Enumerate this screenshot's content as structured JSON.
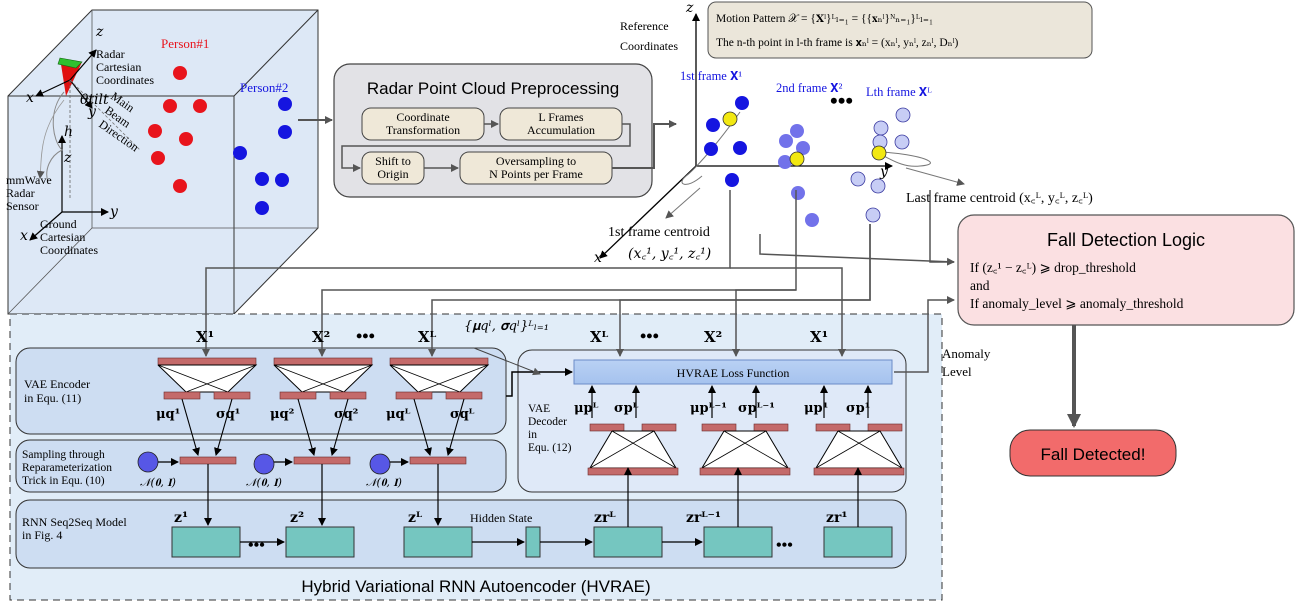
{
  "radar_scene": {
    "person1": "Person#1",
    "person2": "Person#2",
    "radar_coords": [
      "Radar",
      "Cartesian",
      "Coordinates"
    ],
    "main_beam": [
      "Main",
      "Beam",
      "Direction"
    ],
    "theta": "θtilt",
    "h": "h",
    "sensor": [
      "mmWave",
      "Radar",
      "Sensor"
    ],
    "ground_coords": [
      "Ground",
      "Cartesian",
      "Coordinates"
    ],
    "axes": {
      "x": "x",
      "y": "y",
      "z": "z"
    }
  },
  "preprocessing": {
    "title": "Radar Point Cloud Preprocessing",
    "steps": [
      [
        "Coordinate",
        "Transformation"
      ],
      [
        "L Frames",
        "Accumulation"
      ],
      [
        "Shift to",
        "Origin"
      ],
      [
        "Oversampling to",
        "N Points per Frame"
      ]
    ]
  },
  "reference": {
    "label": [
      "Reference",
      "Coordinates"
    ],
    "motion_pattern": "Motion Pattern 𝒳 = {𝐗ˡ}ᴸₗ₌₁ = {{𝐱ₙˡ}ᴺₙ₌₁}ᴸₗ₌₁",
    "nth_point": "The n-th point in l-th frame is 𝐱ₙˡ = (xₙˡ, yₙˡ, zₙˡ, Dₙˡ)",
    "frame1": "1st frame 𝐗¹",
    "frame2": "2nd frame 𝐗²",
    "frameL": "Lth frame 𝐗ᴸ",
    "first_centroid_label": "1st frame centroid",
    "first_centroid_math": "(x꜀¹, y꜀¹, z꜀¹)",
    "last_centroid": "Last frame centroid (x꜀ᴸ, y꜀ᴸ, z꜀ᴸ)"
  },
  "fall_logic": {
    "title": "Fall Detection Logic",
    "line1": "If (z꜀¹ − z꜀ᴸ) ⩾ drop_threshold",
    "line2": "and",
    "line3": "If anomaly_level ⩾ anomaly_threshold",
    "anomaly": [
      "Anomaly",
      "Level"
    ],
    "detected": "Fall Detected!"
  },
  "hvrae": {
    "title": "Hybrid Variational RNN Autoencoder (HVRAE)",
    "inputs": [
      "𝐗¹",
      "𝐗²",
      "𝐗ᴸ"
    ],
    "outputs": [
      "𝐗ᴸ",
      "𝐗²",
      "𝐗¹"
    ],
    "dots": "•••",
    "mu_sigma": "{𝛍qˡ, 𝛔qˡ}ᴸₗ₌₁",
    "encoder": [
      "VAE Encoder",
      "in Equ. (11)"
    ],
    "sampling": [
      "Sampling through",
      "Reparameterization",
      "Trick in Equ. (10)"
    ],
    "rnn": [
      "RNN Seq2Seq Model",
      "in Fig. 4"
    ],
    "decoder": [
      "VAE",
      "Decoder",
      "in",
      "Equ. (12)"
    ],
    "loss": "HVRAE Loss Function",
    "normal": "𝒩(𝟎, 𝐈)",
    "enc_mu": [
      "𝛍q¹",
      "𝛍q²",
      "𝛍qᴸ"
    ],
    "enc_sigma": [
      "𝛔q¹",
      "𝛔q²",
      "𝛔qᴸ"
    ],
    "dec_mu": [
      "𝛍pᴸ",
      "𝛍pᴸ⁻¹",
      "𝛍p¹"
    ],
    "dec_sigma": [
      "𝛔pᴸ",
      "𝛔pᴸ⁻¹",
      "𝛔p¹"
    ],
    "z_enc": [
      "𝐳¹",
      "𝐳²",
      "𝐳ᴸ"
    ],
    "z_dec": [
      "𝐳rᴸ",
      "𝐳rᴸ⁻¹",
      "𝐳r¹"
    ],
    "hidden": "Hidden State"
  }
}
